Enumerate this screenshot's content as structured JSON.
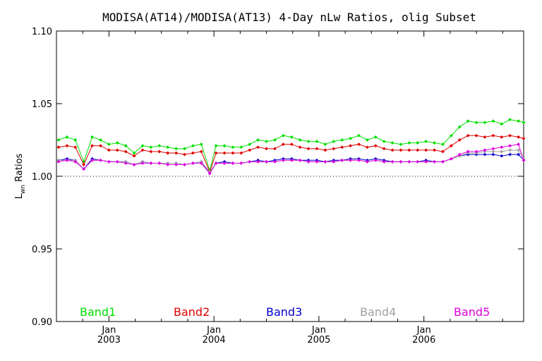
{
  "chart_data": {
    "type": "line",
    "title": "MODISA(AT14)/MODISA(AT13) 4-Day nLw Ratios, olig Subset",
    "ylabel": "Lwn Ratios",
    "ylabel_parts": {
      "main": "L",
      "sub": "wn",
      "rest": " Ratios"
    },
    "xlabel": "",
    "ylim": [
      0.9,
      1.1
    ],
    "xlim": [
      2002.5,
      2006.95
    ],
    "y_ticks": [
      "0.90",
      "0.95",
      "1.00",
      "1.05",
      "1.10"
    ],
    "x_ticks": [
      {
        "month": "Jan",
        "year": "2003",
        "x": 2003.0
      },
      {
        "month": "Jan",
        "year": "2004",
        "x": 2004.0
      },
      {
        "month": "Jan",
        "year": "2005",
        "x": 2005.0
      },
      {
        "month": "Jan",
        "year": "2006",
        "x": 2006.0
      }
    ],
    "reference_line": 1.0,
    "x": [
      2002.52,
      2002.6,
      2002.68,
      2002.76,
      2002.84,
      2002.92,
      2003.0,
      2003.08,
      2003.16,
      2003.24,
      2003.32,
      2003.4,
      2003.48,
      2003.56,
      2003.64,
      2003.72,
      2003.8,
      2003.88,
      2003.96,
      2004.02,
      2004.1,
      2004.18,
      2004.26,
      2004.34,
      2004.42,
      2004.5,
      2004.58,
      2004.66,
      2004.74,
      2004.82,
      2004.9,
      2004.98,
      2005.06,
      2005.14,
      2005.22,
      2005.3,
      2005.38,
      2005.46,
      2005.54,
      2005.62,
      2005.7,
      2005.78,
      2005.86,
      2005.94,
      2006.02,
      2006.1,
      2006.18,
      2006.26,
      2006.34,
      2006.42,
      2006.5,
      2006.58,
      2006.66,
      2006.74,
      2006.82,
      2006.9,
      2006.95
    ],
    "series": [
      {
        "name": "Band1",
        "color": "#00e000",
        "values": [
          1.025,
          1.027,
          1.025,
          1.01,
          1.027,
          1.025,
          1.022,
          1.023,
          1.021,
          1.016,
          1.021,
          1.02,
          1.021,
          1.02,
          1.019,
          1.019,
          1.021,
          1.022,
          1.004,
          1.021,
          1.021,
          1.02,
          1.02,
          1.022,
          1.025,
          1.024,
          1.025,
          1.028,
          1.027,
          1.025,
          1.024,
          1.024,
          1.022,
          1.024,
          1.025,
          1.026,
          1.028,
          1.025,
          1.027,
          1.024,
          1.023,
          1.022,
          1.023,
          1.023,
          1.024,
          1.023,
          1.022,
          1.028,
          1.034,
          1.038,
          1.037,
          1.037,
          1.038,
          1.036,
          1.039,
          1.038,
          1.037
        ]
      },
      {
        "name": "Band2",
        "color": "#e00000",
        "values": [
          1.02,
          1.021,
          1.02,
          1.008,
          1.021,
          1.021,
          1.018,
          1.018,
          1.017,
          1.014,
          1.018,
          1.017,
          1.017,
          1.016,
          1.016,
          1.015,
          1.016,
          1.017,
          1.003,
          1.016,
          1.016,
          1.016,
          1.016,
          1.018,
          1.02,
          1.019,
          1.019,
          1.022,
          1.022,
          1.02,
          1.019,
          1.019,
          1.018,
          1.019,
          1.02,
          1.021,
          1.022,
          1.02,
          1.021,
          1.019,
          1.018,
          1.018,
          1.018,
          1.018,
          1.018,
          1.018,
          1.017,
          1.021,
          1.025,
          1.028,
          1.028,
          1.027,
          1.028,
          1.027,
          1.028,
          1.027,
          1.026
        ]
      },
      {
        "name": "Band3",
        "color": "#0000d0",
        "values": [
          1.011,
          1.012,
          1.011,
          1.005,
          1.012,
          1.011,
          1.01,
          1.01,
          1.01,
          1.008,
          1.01,
          1.009,
          1.009,
          1.009,
          1.009,
          1.008,
          1.009,
          1.01,
          1.002,
          1.009,
          1.01,
          1.009,
          1.009,
          1.01,
          1.011,
          1.01,
          1.011,
          1.012,
          1.012,
          1.011,
          1.011,
          1.011,
          1.01,
          1.011,
          1.011,
          1.012,
          1.012,
          1.011,
          1.012,
          1.011,
          1.01,
          1.01,
          1.01,
          1.01,
          1.011,
          1.01,
          1.01,
          1.012,
          1.014,
          1.015,
          1.015,
          1.015,
          1.015,
          1.014,
          1.015,
          1.015,
          1.011
        ]
      },
      {
        "name": "Band4",
        "color": "#a0a0a0",
        "values": [
          1.011,
          1.011,
          1.011,
          1.005,
          1.011,
          1.011,
          1.01,
          1.01,
          1.01,
          1.008,
          1.01,
          1.009,
          1.009,
          1.009,
          1.009,
          1.008,
          1.009,
          1.01,
          1.003,
          1.009,
          1.009,
          1.009,
          1.009,
          1.01,
          1.01,
          1.01,
          1.01,
          1.011,
          1.011,
          1.011,
          1.01,
          1.01,
          1.01,
          1.01,
          1.011,
          1.011,
          1.011,
          1.01,
          1.011,
          1.01,
          1.01,
          1.01,
          1.01,
          1.01,
          1.01,
          1.01,
          1.01,
          1.012,
          1.014,
          1.016,
          1.016,
          1.017,
          1.017,
          1.017,
          1.018,
          1.018,
          1.012
        ]
      },
      {
        "name": "Band5",
        "color": "#e000e0",
        "values": [
          1.01,
          1.011,
          1.01,
          1.005,
          1.011,
          1.011,
          1.01,
          1.01,
          1.009,
          1.008,
          1.009,
          1.009,
          1.009,
          1.008,
          1.008,
          1.008,
          1.009,
          1.009,
          1.002,
          1.009,
          1.009,
          1.009,
          1.009,
          1.01,
          1.01,
          1.01,
          1.01,
          1.011,
          1.011,
          1.011,
          1.01,
          1.01,
          1.01,
          1.01,
          1.011,
          1.011,
          1.011,
          1.01,
          1.011,
          1.01,
          1.01,
          1.01,
          1.01,
          1.01,
          1.01,
          1.01,
          1.01,
          1.012,
          1.015,
          1.017,
          1.017,
          1.018,
          1.019,
          1.02,
          1.021,
          1.022,
          1.011
        ]
      }
    ]
  }
}
